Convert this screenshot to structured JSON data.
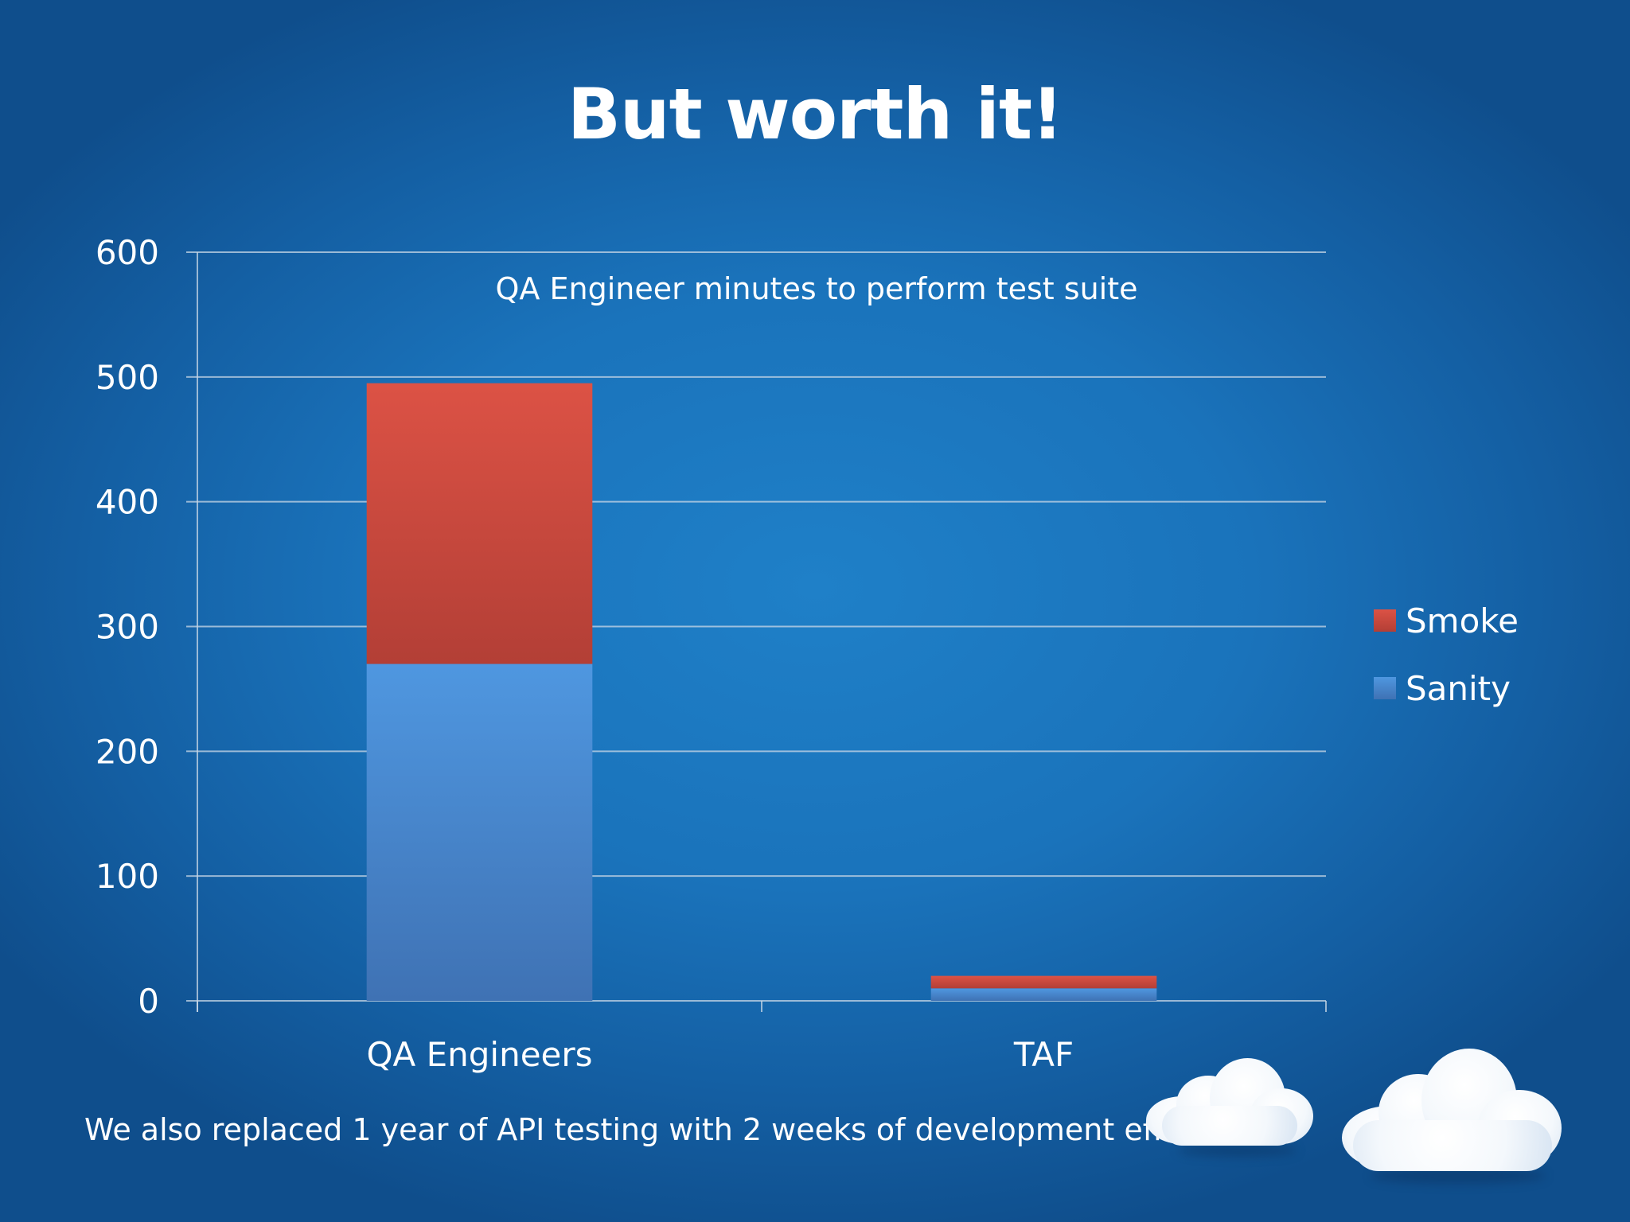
{
  "slide": {
    "title": "But worth it!",
    "footer": "We also replaced 1 year of API testing with 2 weeks of development effort"
  },
  "chart_data": {
    "type": "bar",
    "stacked": true,
    "title": "QA Engineer minutes to perform test suite",
    "xlabel": "",
    "ylabel": "",
    "categories": [
      "QA Engineers",
      "TAF"
    ],
    "ylim": [
      0,
      600
    ],
    "yticks": [
      0,
      100,
      200,
      300,
      400,
      500,
      600
    ],
    "grid": true,
    "legend_position": "right",
    "series": [
      {
        "name": "Sanity",
        "values": [
          270,
          10
        ],
        "color": "#4a8fd6"
      },
      {
        "name": "Smoke",
        "values": [
          225,
          10
        ],
        "color": "#d1493d"
      }
    ],
    "legend_order": [
      "Smoke",
      "Sanity"
    ]
  }
}
